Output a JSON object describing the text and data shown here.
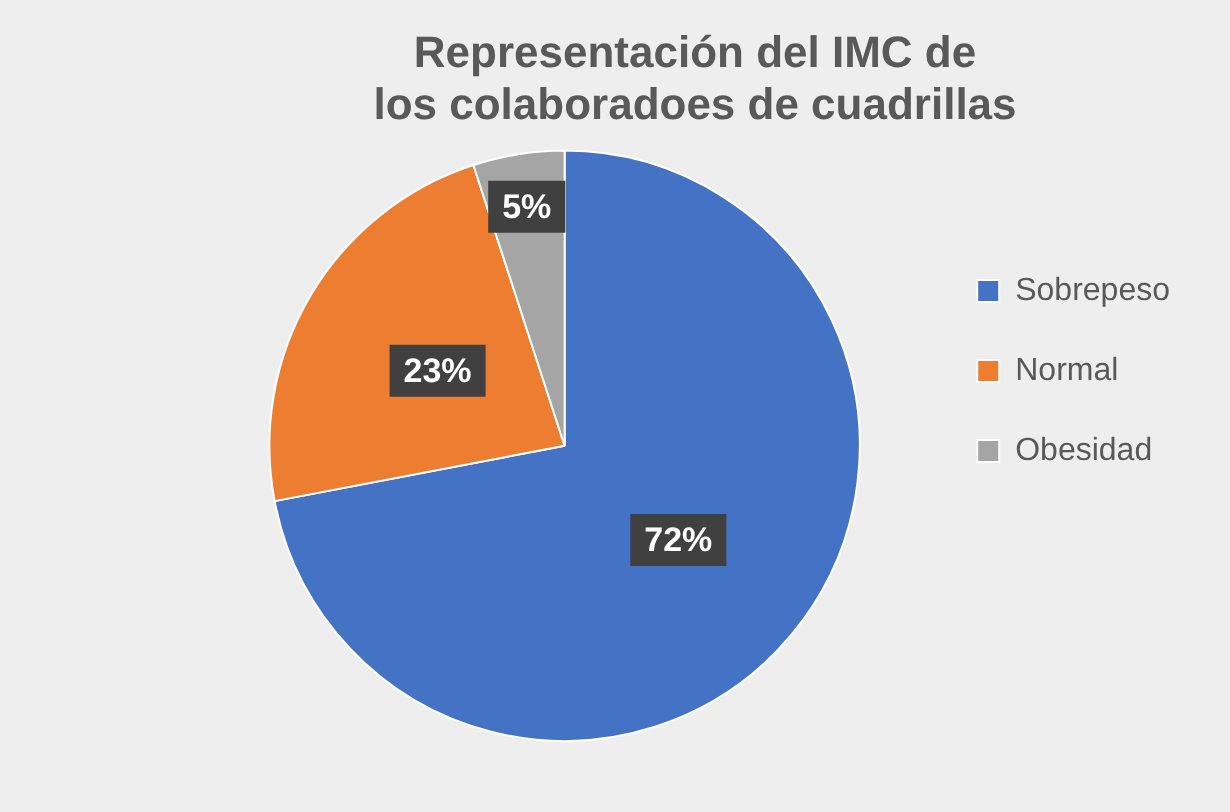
{
  "chart_data": {
    "type": "pie",
    "title": "Representación del IMC de los colaboradoes de cuadrillas",
    "categories": [
      "Sobrepeso",
      "Normal",
      "Obesidad"
    ],
    "values": [
      72,
      23,
      5
    ],
    "colors": [
      "#4472c4",
      "#ed7d31",
      "#a5a5a5"
    ],
    "value_labels": [
      "72%",
      "23%",
      "5%"
    ],
    "legend": "right"
  }
}
